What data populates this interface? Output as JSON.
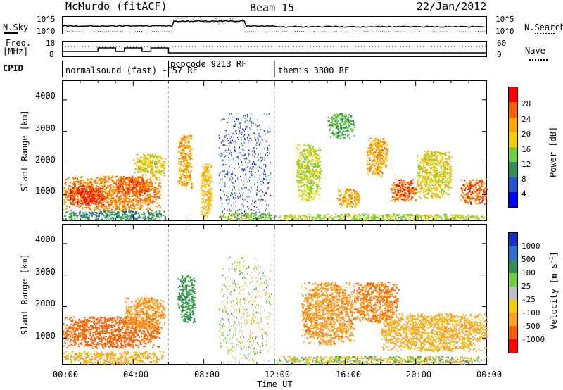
{
  "header": {
    "station": "McMurdo (fitACF)",
    "beam": "Beam 15",
    "date": "22/Jan/2012"
  },
  "top_panel": {
    "left_label": "N.Sky",
    "right_label": "N.Search",
    "left_ticks": [
      "10^5",
      "10^0"
    ],
    "right_ticks": [
      "10^5",
      "10^0"
    ]
  },
  "freq_panel": {
    "left_label_line1": "Freq.",
    "left_label_line2": "[MHz]",
    "left_ticks": [
      "18",
      "8"
    ],
    "right_label": "Nave",
    "right_ticks": [
      "60",
      "0"
    ]
  },
  "cpid": {
    "label": "CPID",
    "programs": [
      {
        "name": "normalsound (fast) -157 RF",
        "start": 0
      },
      {
        "name": "pcpcode 9213 RF",
        "start": 6
      },
      {
        "name": "themis 3300 RF",
        "start": 12
      }
    ]
  },
  "x_axis": {
    "label": "Time UT",
    "ticks": [
      "00:00",
      "04:00",
      "08:00",
      "12:00",
      "16:00",
      "20:00",
      "00:00"
    ],
    "range_hours": [
      0,
      24
    ]
  },
  "power_panel": {
    "ylabel": "Slant Range [km]",
    "yticks": [
      "1000",
      "2000",
      "3000",
      "4000"
    ],
    "colorbar_label": "Power [dB]",
    "colorbar_ticks": [
      "4",
      "8",
      "12",
      "16",
      "20",
      "24",
      "28"
    ],
    "colors": [
      "#0000ff",
      "#2255cc",
      "#2f8f55",
      "#6fcf3f",
      "#f0d000",
      "#ffa500",
      "#ff6000",
      "#ff0000"
    ]
  },
  "velocity_panel": {
    "ylabel": "Slant Range [km]",
    "yticks": [
      "1000",
      "2000",
      "3000",
      "4000"
    ],
    "colorbar_label": "Velocity [m s",
    "colorbar_label_sup": "-1",
    "colorbar_label_end": "]",
    "colorbar_ticks": [
      "1000",
      "500",
      "100",
      "25",
      "-25",
      "-100",
      "-500",
      "-1000"
    ],
    "colors": [
      "#1530c0",
      "#2f6fd0",
      "#2f8f55",
      "#6fcf3f",
      "#c0c0c0",
      "#f0d000",
      "#ffa020",
      "#ff6000",
      "#ff0000"
    ]
  },
  "chart_data": [
    {
      "type": "heatmap",
      "title": "Power",
      "xlabel": "Time UT",
      "ylabel": "Slant Range [km]",
      "xlim": [
        0,
        24
      ],
      "ylim": [
        180,
        4600
      ],
      "colorbar": "Power [dB]",
      "blobs": [
        {
          "t0": 0.0,
          "t1": 5.5,
          "r0": 500,
          "r1": 1600,
          "value": 24
        },
        {
          "t0": 0.3,
          "t1": 2.5,
          "r0": 700,
          "r1": 1300,
          "value": 28
        },
        {
          "t0": 3.0,
          "t1": 5.0,
          "r0": 1000,
          "r1": 1600,
          "value": 26
        },
        {
          "t0": 4.0,
          "t1": 5.8,
          "r0": 1600,
          "r1": 2300,
          "value": 18
        },
        {
          "t0": 0.0,
          "t1": 5.8,
          "r0": 200,
          "r1": 500,
          "value": 10
        },
        {
          "t0": 6.5,
          "t1": 7.3,
          "r0": 1200,
          "r1": 2900,
          "value": 22
        },
        {
          "t0": 7.8,
          "t1": 8.4,
          "r0": 300,
          "r1": 2000,
          "value": 20
        },
        {
          "t0": 8.8,
          "t1": 11.8,
          "r0": 200,
          "r1": 3600,
          "value": 6
        },
        {
          "t0": 8.8,
          "t1": 11.8,
          "r0": 200,
          "r1": 450,
          "value": 14
        },
        {
          "t0": 12.0,
          "t1": 24.0,
          "r0": 200,
          "r1": 400,
          "value": 16
        },
        {
          "t0": 13.2,
          "t1": 14.6,
          "r0": 800,
          "r1": 2600,
          "value": 16
        },
        {
          "t0": 15.5,
          "t1": 16.8,
          "r0": 600,
          "r1": 1200,
          "value": 22
        },
        {
          "t0": 17.2,
          "t1": 18.4,
          "r0": 1600,
          "r1": 2800,
          "value": 22
        },
        {
          "t0": 18.5,
          "t1": 20.0,
          "r0": 800,
          "r1": 1500,
          "value": 26
        },
        {
          "t0": 20.0,
          "t1": 22.0,
          "r0": 900,
          "r1": 2400,
          "value": 18
        },
        {
          "t0": 22.5,
          "t1": 24.0,
          "r0": 700,
          "r1": 1500,
          "value": 26
        },
        {
          "t0": 15.0,
          "t1": 16.5,
          "r0": 2800,
          "r1": 3600,
          "value": 12
        }
      ]
    },
    {
      "type": "heatmap",
      "title": "Velocity",
      "xlabel": "Time UT",
      "ylabel": "Slant Range [km]",
      "xlim": [
        0,
        24
      ],
      "ylim": [
        180,
        4600
      ],
      "colorbar": "Velocity [m s-1]",
      "blobs": [
        {
          "t0": 0.0,
          "t1": 5.5,
          "r0": 700,
          "r1": 1700,
          "value": -700
        },
        {
          "t0": 3.5,
          "t1": 5.8,
          "r0": 1300,
          "r1": 2300,
          "value": -400
        },
        {
          "t0": 0.0,
          "t1": 5.8,
          "r0": 200,
          "r1": 600,
          "value": -150
        },
        {
          "t0": 6.5,
          "t1": 7.5,
          "r0": 1500,
          "r1": 3000,
          "value": 200
        },
        {
          "t0": 8.8,
          "t1": 11.8,
          "r0": 200,
          "r1": 3600,
          "value": 0
        },
        {
          "t0": 12.0,
          "t1": 24.0,
          "r0": 200,
          "r1": 450,
          "value": 0
        },
        {
          "t0": 13.5,
          "t1": 16.5,
          "r0": 800,
          "r1": 2800,
          "value": -400
        },
        {
          "t0": 16.5,
          "t1": 19.0,
          "r0": 1500,
          "r1": 2800,
          "value": -500
        },
        {
          "t0": 18.0,
          "t1": 24.0,
          "r0": 600,
          "r1": 1800,
          "value": -150
        }
      ]
    }
  ]
}
